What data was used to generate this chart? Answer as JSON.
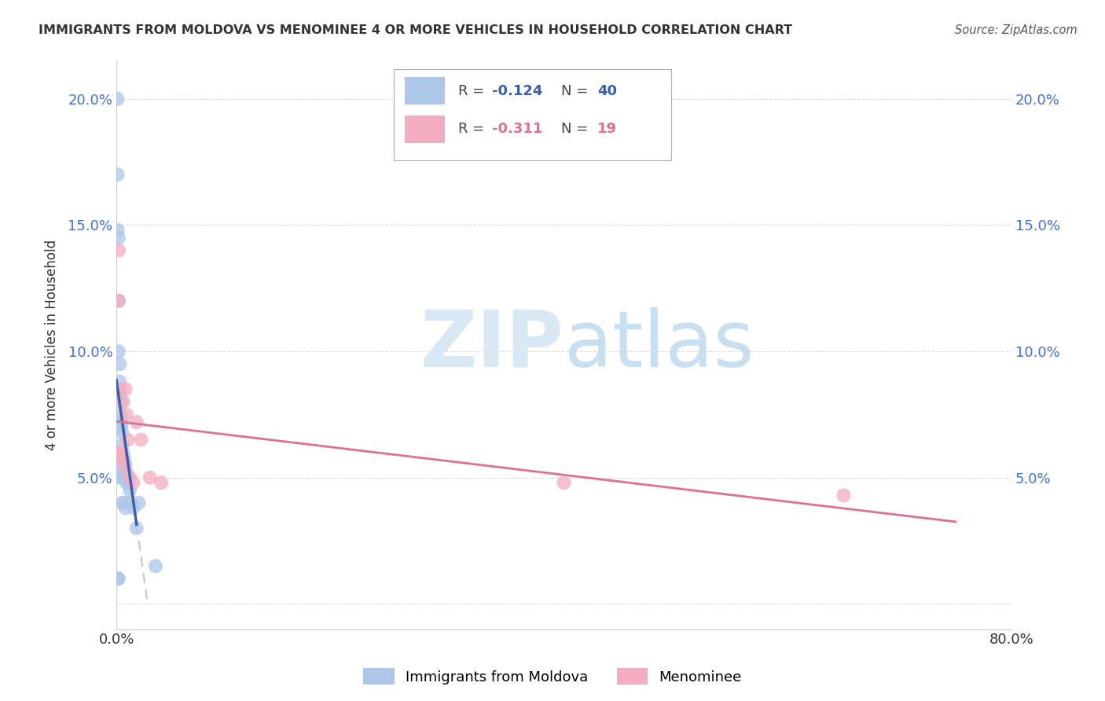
{
  "title": "IMMIGRANTS FROM MOLDOVA VS MENOMINEE 4 OR MORE VEHICLES IN HOUSEHOLD CORRELATION CHART",
  "source": "Source: ZipAtlas.com",
  "ylabel": "4 or more Vehicles in Household",
  "xlim": [
    0.0,
    0.8
  ],
  "ylim": [
    -0.01,
    0.215
  ],
  "blue_r": -0.124,
  "blue_n": 40,
  "pink_r": -0.311,
  "pink_n": 19,
  "blue_points_x": [
    0.001,
    0.001,
    0.001,
    0.001,
    0.002,
    0.002,
    0.002,
    0.002,
    0.002,
    0.003,
    0.003,
    0.003,
    0.003,
    0.004,
    0.004,
    0.004,
    0.004,
    0.005,
    0.005,
    0.005,
    0.005,
    0.006,
    0.006,
    0.006,
    0.007,
    0.007,
    0.007,
    0.008,
    0.008,
    0.008,
    0.009,
    0.009,
    0.01,
    0.01,
    0.012,
    0.013,
    0.015,
    0.018,
    0.02,
    0.035
  ],
  "blue_points_y": [
    0.2,
    0.17,
    0.148,
    0.01,
    0.145,
    0.12,
    0.1,
    0.055,
    0.01,
    0.095,
    0.088,
    0.083,
    0.05,
    0.08,
    0.075,
    0.07,
    0.055,
    0.072,
    0.068,
    0.063,
    0.04,
    0.06,
    0.058,
    0.05,
    0.057,
    0.055,
    0.04,
    0.055,
    0.052,
    0.038,
    0.052,
    0.048,
    0.05,
    0.048,
    0.045,
    0.04,
    0.038,
    0.03,
    0.04,
    0.015
  ],
  "pink_points_x": [
    0.002,
    0.002,
    0.003,
    0.003,
    0.004,
    0.005,
    0.006,
    0.007,
    0.008,
    0.009,
    0.01,
    0.012,
    0.015,
    0.018,
    0.022,
    0.03,
    0.04,
    0.4,
    0.65
  ],
  "pink_points_y": [
    0.14,
    0.12,
    0.085,
    0.06,
    0.06,
    0.058,
    0.08,
    0.055,
    0.085,
    0.075,
    0.065,
    0.05,
    0.048,
    0.072,
    0.065,
    0.05,
    0.048,
    0.048,
    0.043
  ],
  "blue_color": "#aec6e8",
  "pink_color": "#f4adc0",
  "blue_line_color": "#3a5fa8",
  "pink_line_color": "#e07090",
  "dashed_line_color": "#b8c8dc",
  "watermark_color": "#d8e8f4",
  "background_color": "#ffffff",
  "grid_color": "#dddddd",
  "tick_color": "#4472c4",
  "text_color": "#333333"
}
